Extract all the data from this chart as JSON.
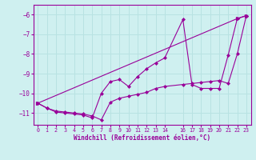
{
  "xlabel": "Windchill (Refroidissement éolien,°C)",
  "bg_color": "#cff0f0",
  "grid_color": "#b8e2e2",
  "line_color": "#990099",
  "x_ticks": [
    0,
    1,
    2,
    3,
    4,
    5,
    6,
    7,
    8,
    9,
    10,
    11,
    12,
    13,
    14,
    16,
    17,
    18,
    19,
    20,
    21,
    22,
    23
  ],
  "xlim": [
    -0.5,
    23.5
  ],
  "ylim": [
    -11.6,
    -5.5
  ],
  "y_ticks": [
    -6,
    -7,
    -8,
    -9,
    -10,
    -11
  ],
  "line1_x": [
    0,
    1,
    2,
    3,
    4,
    5,
    6,
    7,
    8,
    9,
    10,
    11,
    12,
    13,
    14,
    16,
    17,
    18,
    19,
    20,
    21,
    22,
    23
  ],
  "line1_y": [
    -10.5,
    -10.75,
    -10.95,
    -11.0,
    -11.05,
    -11.1,
    -11.25,
    -10.0,
    -9.4,
    -9.3,
    -9.65,
    -9.15,
    -8.75,
    -8.45,
    -8.2,
    -6.25,
    -9.55,
    -9.75,
    -9.75,
    -9.75,
    -8.05,
    -6.2,
    -6.05
  ],
  "line2_x": [
    0,
    1,
    2,
    3,
    4,
    5,
    6,
    7,
    8,
    9,
    10,
    11,
    12,
    13,
    14,
    16,
    17,
    18,
    19,
    20,
    21,
    22,
    23
  ],
  "line2_y": [
    -10.5,
    -10.75,
    -10.9,
    -10.95,
    -11.0,
    -11.05,
    -11.15,
    -11.35,
    -10.45,
    -10.25,
    -10.15,
    -10.05,
    -9.95,
    -9.75,
    -9.65,
    -9.55,
    -9.5,
    -9.45,
    -9.4,
    -9.35,
    -9.5,
    -8.0,
    -6.05
  ],
  "line3_x": [
    0,
    22,
    23
  ],
  "line3_y": [
    -10.5,
    -6.2,
    -6.05
  ]
}
